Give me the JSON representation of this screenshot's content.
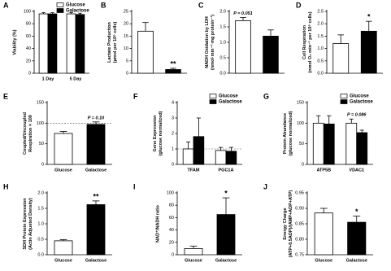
{
  "chart_data": [
    {
      "type": "bar",
      "label": "A",
      "ylabel": [
        "Viability (%)"
      ],
      "categories": [
        "1 Day",
        "5 Day"
      ],
      "series": [
        {
          "name": "Glucose",
          "color": "#ffffff",
          "values": [
            96,
            96
          ],
          "errors": [
            2,
            2
          ]
        },
        {
          "name": "Galactose",
          "color": "#000000",
          "values": [
            96,
            95
          ],
          "errors": [
            2,
            2
          ]
        }
      ],
      "legend": "upper right",
      "ylim": [
        0,
        100
      ],
      "yticks": [
        0,
        20,
        40,
        60,
        80,
        100
      ]
    },
    {
      "type": "bar",
      "label": "B",
      "ylabel": [
        "Lactate Production",
        "(µmol per 10⁶ cells)"
      ],
      "categories": [
        null,
        null
      ],
      "values": [
        17,
        1.5
      ],
      "errors": [
        3.5,
        0.5
      ],
      "colors": [
        "#ffffff",
        "#000000"
      ],
      "ylim": [
        0,
        25
      ],
      "yticks": [
        0,
        5,
        10,
        15,
        20,
        25
      ],
      "annotations": [
        {
          "text": "**",
          "category": 1
        }
      ]
    },
    {
      "type": "bar",
      "label": "C",
      "ylabel": [
        "NADH Oxidation by LDH",
        "(nmol·min⁻¹·mg protein⁻¹)"
      ],
      "categories": [
        null,
        null
      ],
      "values": [
        1.7,
        1.2
      ],
      "errors": [
        0.1,
        0.2
      ],
      "colors": [
        "#ffffff",
        "#000000"
      ],
      "ylim": [
        0,
        2
      ],
      "yticks": [
        {
          "value": 0,
          "label": "0.0"
        },
        0.5,
        {
          "value": 1,
          "label": "1.0"
        },
        1.5,
        {
          "value": 2,
          "label": "2.0"
        }
      ],
      "annotations": [
        {
          "text": "P = 0.051",
          "category": 0
        }
      ]
    },
    {
      "type": "bar",
      "label": "D",
      "ylabel": [
        "Cell Respiration",
        "(nmol O₂ min⁻¹ per 10⁶ cells)"
      ],
      "categories": [
        null,
        null
      ],
      "values": [
        1.2,
        1.7
      ],
      "errors": [
        0.35,
        0.4
      ],
      "colors": [
        "#ffffff",
        "#000000"
      ],
      "ylim": [
        0,
        2.5
      ],
      "yticks": [
        {
          "value": 0,
          "label": "0.0"
        },
        0.5,
        {
          "value": 1,
          "label": "1.0"
        },
        1.5,
        {
          "value": 2,
          "label": "2.0"
        },
        2.5
      ],
      "annotations": [
        {
          "text": "*",
          "category": 1
        }
      ]
    },
    {
      "type": "bar",
      "label": "E",
      "ylabel": [
        "Coupled/Uncoupled",
        "Respiration × 100"
      ],
      "categories": [
        "Glucose",
        "Galactose"
      ],
      "values": [
        75,
        97
      ],
      "errors": [
        5,
        6
      ],
      "colors": [
        "#ffffff",
        "#000000"
      ],
      "refline": 100,
      "ylim": [
        0,
        150
      ],
      "yticks": [
        0,
        50,
        100,
        150
      ],
      "annotations": [
        {
          "text": "P = 0.10",
          "category": 1
        }
      ]
    },
    {
      "type": "bar",
      "label": "F",
      "ylabel": [
        "Gene Expression",
        "(glucose normalized)"
      ],
      "categories": [
        "TFAM",
        "PGC1A"
      ],
      "series": [
        {
          "name": "Glucose",
          "color": "#ffffff",
          "values": [
            1.0,
            0.9
          ],
          "errors": [
            0.45,
            0.2
          ]
        },
        {
          "name": "Galactose",
          "color": "#000000",
          "values": [
            1.8,
            0.85
          ],
          "errors": [
            1.2,
            0.25
          ]
        }
      ],
      "legend": "upper right",
      "refline": 1,
      "ylim": [
        0,
        4
      ],
      "yticks": [
        0,
        1,
        2,
        3,
        4
      ]
    },
    {
      "type": "bar",
      "label": "G",
      "ylabel": [
        "Protein Abundance",
        "(glucose normalized)"
      ],
      "categories": [
        "ATP5B",
        "VDAC1"
      ],
      "series": [
        {
          "name": "Glucose",
          "color": "#ffffff",
          "values": [
            100,
            100
          ],
          "errors": [
            18,
            10
          ]
        },
        {
          "name": "Galactose",
          "color": "#000000",
          "values": [
            98,
            77
          ],
          "errors": [
            20,
            6
          ]
        }
      ],
      "legend": "upper right",
      "ylim": [
        0,
        150
      ],
      "yticks": [
        0,
        50,
        100,
        150
      ],
      "annotations": [
        {
          "text": "P = 0.086",
          "category": 1
        }
      ]
    },
    {
      "type": "bar",
      "label": "H",
      "ylabel": [
        "SDH Protein Expression",
        "(Actin Adjusted Density)"
      ],
      "categories": [
        "Glucose",
        "Galactose"
      ],
      "values": [
        0.45,
        1.62
      ],
      "errors": [
        0.04,
        0.12
      ],
      "colors": [
        "#ffffff",
        "#000000"
      ],
      "ylim": [
        0,
        2
      ],
      "yticks": [
        {
          "value": 0,
          "label": "0.0"
        },
        0.5,
        {
          "value": 1,
          "label": "1.0"
        },
        1.5,
        {
          "value": 2,
          "label": "2.0"
        }
      ],
      "annotations": [
        {
          "text": "**",
          "category": 1
        }
      ]
    },
    {
      "type": "bar",
      "label": "I",
      "ylabel": [
        "NAD⁺/NADH ratio"
      ],
      "categories": [
        "Glucose",
        "Galactose"
      ],
      "values": [
        10,
        65
      ],
      "errors": [
        4,
        27
      ],
      "colors": [
        "#ffffff",
        "#000000"
      ],
      "ylim": [
        0,
        100
      ],
      "yticks": [
        0,
        20,
        40,
        60,
        80,
        100
      ],
      "annotations": [
        {
          "text": "*",
          "category": 1
        }
      ]
    },
    {
      "type": "bar",
      "label": "J",
      "ylabel": [
        "Energy Charge",
        "(ATP+0.5ADP)/(AMP+ADP+ATP)"
      ],
      "categories": [
        "Glucose",
        "Galactose"
      ],
      "values": [
        0.885,
        0.855
      ],
      "errors": [
        0.015,
        0.02
      ],
      "colors": [
        "#ffffff",
        "#000000"
      ],
      "ylim": [
        0.75,
        0.95
      ],
      "yticks": [
        0.75,
        {
          "value": 0.8,
          "label": "0.80"
        },
        0.85,
        {
          "value": 0.9,
          "label": "0.90"
        },
        0.95
      ],
      "annotations": [
        {
          "text": "*",
          "category": 1
        }
      ]
    }
  ]
}
